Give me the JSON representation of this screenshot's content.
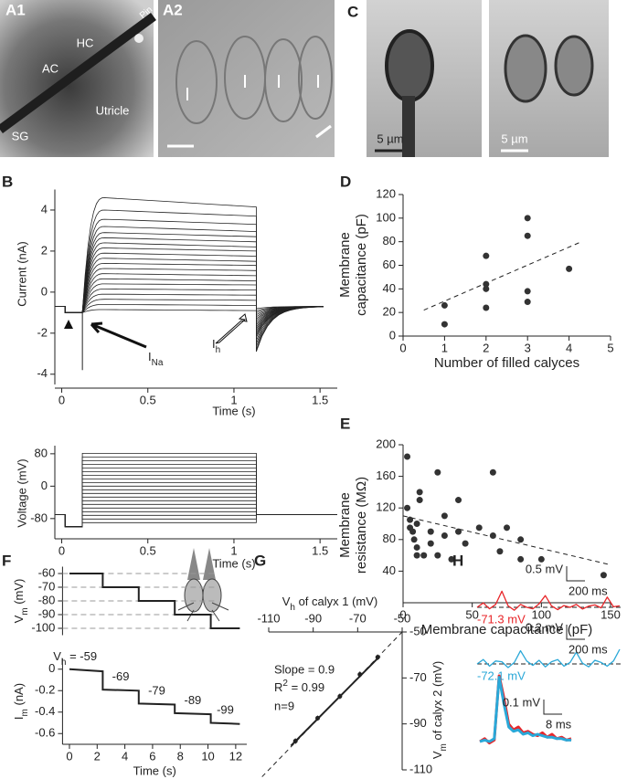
{
  "images": {
    "A1": {
      "label": "A1",
      "texts": [
        "Pin",
        "HC",
        "AC",
        "Utricle",
        "SG"
      ]
    },
    "A2": {
      "label": "A2"
    },
    "C": {
      "label": "C",
      "scale_bars": [
        "5 µm",
        "5 µm"
      ]
    }
  },
  "chart_data": [
    {
      "panel": "B",
      "type": "current-family",
      "ylabel": "Current (nA)",
      "xlabel": "Time (s)",
      "xlim": [
        -0.04,
        1.6
      ],
      "ylim": [
        -4.5,
        5
      ],
      "xticks": [
        0,
        0.5,
        1,
        1.5
      ],
      "yticks": [
        -4,
        -2,
        0,
        2,
        4
      ],
      "baseline": -0.7,
      "prepulse": -1.0,
      "step_on": 0.12,
      "step_off": 1.13,
      "na_peak": -3.8,
      "tail_end": -0.7,
      "peaks": [
        -0.85,
        -0.6,
        -0.35,
        -0.1,
        0.15,
        0.4,
        0.65,
        0.9,
        1.15,
        1.4,
        1.65,
        1.9,
        2.15,
        2.4,
        2.65,
        2.9,
        3.2,
        3.55,
        4.0,
        4.6
      ],
      "ends": [
        -0.9,
        -0.65,
        -0.4,
        -0.15,
        0.1,
        0.35,
        0.55,
        0.8,
        1.05,
        1.3,
        1.5,
        1.75,
        2.0,
        2.2,
        2.45,
        2.7,
        2.95,
        3.3,
        3.7,
        4.15
      ],
      "tails": [
        -0.8,
        -0.9,
        -1.0,
        -1.1,
        -1.2,
        -1.3,
        -1.4,
        -1.5,
        -1.6,
        -1.7,
        -1.8,
        -1.9,
        -2.0,
        -2.1,
        -2.2,
        -2.35,
        -2.5,
        -2.65,
        -2.8,
        -2.9
      ],
      "annotations": [
        [
          "I",
          "Na"
        ],
        [
          "I",
          "h"
        ]
      ]
    },
    {
      "type": "voltage-family",
      "ylabel": "Voltage (mV)",
      "xlabel": "Time (s)",
      "xlim": [
        -0.04,
        1.6
      ],
      "ylim": [
        -130,
        100
      ],
      "xticks": [
        0,
        0.5,
        1,
        1.5
      ],
      "yticks": [
        -80,
        0,
        80
      ],
      "hold": -70,
      "prepulse": -100,
      "after": -70,
      "prepulse_on": 0.02,
      "step_on": 0.12,
      "step_off": 1.13,
      "levels": [
        -90,
        -81,
        -72,
        -63,
        -54,
        -45,
        -36,
        -27,
        -18,
        -9,
        0,
        9,
        18,
        27,
        36,
        45,
        54,
        63,
        72,
        81
      ]
    },
    {
      "panel": "D",
      "type": "scatter",
      "ylabel": [
        "Membrane",
        "capacitance (pF)"
      ],
      "xlabel": "Number of filled calyces",
      "xlim": [
        0,
        5
      ],
      "ylim": [
        0,
        120
      ],
      "xticks": [
        0,
        1,
        2,
        3,
        4,
        5
      ],
      "yticks": [
        0,
        20,
        40,
        60,
        80,
        100,
        120
      ],
      "x": [
        1,
        1,
        2,
        2,
        2,
        2,
        3,
        3,
        3,
        3,
        4
      ],
      "values": [
        26,
        10,
        68,
        44,
        40,
        24,
        100,
        85,
        38,
        29,
        57
      ],
      "trend": {
        "x": [
          0.5,
          4.3
        ],
        "y": [
          22,
          80
        ]
      }
    },
    {
      "panel": "E",
      "type": "scatter",
      "ylabel": [
        "Membrane",
        "resistance (MΩ)"
      ],
      "xlabel": "Membrane capacitance (pF)",
      "xlim": [
        0,
        150
      ],
      "ylim": [
        0,
        200
      ],
      "xticks": [
        0,
        50,
        100,
        150
      ],
      "yticks": [
        40,
        80,
        120,
        160,
        200
      ],
      "x": [
        3,
        3,
        5,
        5,
        7,
        8,
        10,
        10,
        12,
        12,
        10,
        15,
        20,
        20,
        25,
        25,
        30,
        30,
        35,
        40,
        40,
        45,
        55,
        65,
        65,
        70,
        75,
        85,
        85,
        100,
        145
      ],
      "values": [
        185,
        120,
        105,
        95,
        90,
        80,
        70,
        60,
        140,
        130,
        100,
        60,
        90,
        75,
        165,
        60,
        110,
        85,
        55,
        130,
        90,
        75,
        95,
        165,
        85,
        65,
        95,
        80,
        55,
        55,
        35
      ],
      "trend": {
        "x": [
          0,
          150
        ],
        "y": [
          110,
          48
        ]
      }
    },
    {
      "panel": "F",
      "type": "step-line",
      "ylabel_parts": [
        "V",
        "m",
        " (mV)"
      ],
      "xlim": [
        -0.5,
        12.8
      ],
      "ylim": [
        -105,
        -55
      ],
      "yticks": [
        -60,
        -70,
        -80,
        -90,
        -100
      ],
      "grid": true,
      "x": [
        0,
        2.4,
        2.4,
        5,
        5,
        7.6,
        7.6,
        10.2,
        10.2,
        12.3
      ],
      "values": [
        -60,
        -60,
        -70,
        -70,
        -80,
        -80,
        -90,
        -90,
        -100,
        -100
      ]
    },
    {
      "type": "step-line",
      "ylabel_parts": [
        "I",
        "m",
        " (nA)"
      ],
      "xlabel": "Time (s)",
      "xlim": [
        -0.5,
        12.8
      ],
      "ylim": [
        -0.7,
        0.1
      ],
      "xticks": [
        0,
        2,
        4,
        6,
        8,
        10,
        12
      ],
      "yticks": [
        0,
        -0.2,
        -0.4,
        -0.6
      ],
      "x": [
        0,
        2.4,
        2.4,
        5,
        5,
        7.6,
        7.6,
        10.2,
        10.2,
        12.3
      ],
      "values": [
        0,
        -0.02,
        -0.19,
        -0.2,
        -0.32,
        -0.33,
        -0.41,
        -0.42,
        -0.5,
        -0.51
      ],
      "label_prefix": [
        "V",
        "h",
        " = "
      ],
      "step_labels": [
        "-59",
        "-69",
        "-79",
        "-89",
        "-99"
      ]
    },
    {
      "panel": "G",
      "type": "errorbar-line",
      "xlabel_parts": [
        "V",
        "h",
        " of calyx 1 (mV)"
      ],
      "ylabel_parts": [
        "V",
        "m",
        " of calyx 2 (mV)"
      ],
      "xlim": [
        -110,
        -50
      ],
      "ylim": [
        -110,
        -50
      ],
      "xticks": [
        -110,
        -90,
        -70,
        -50
      ],
      "yticks": [
        -50,
        -70,
        -90,
        -110
      ],
      "x": [
        -98,
        -88,
        -78,
        -69,
        -61
      ],
      "values": [
        -97.5,
        -87.5,
        -78,
        -68.5,
        -61
      ],
      "errors": [
        1.2,
        1.1,
        1.2,
        1.3,
        1.2
      ],
      "fit": {
        "x": [
          -100,
          -60
        ],
        "y": [
          -99.5,
          -60.5
        ]
      },
      "stats": [
        "Slope = 0.9",
        [
          "R",
          "2",
          " = 0.99"
        ],
        "n=9"
      ]
    },
    {
      "panel": "H",
      "type": "traces",
      "traces": [
        {
          "label": "-71.3 mV",
          "color": "#e8262a",
          "scale_v": "0.5 mV",
          "scale_t": "200 ms",
          "values": [
            0,
            0.15,
            -0.05,
            0.1,
            0.55,
            0.05,
            -0.1,
            0.1,
            0,
            -0.05,
            0.12,
            0.4,
            0.05,
            -0.08,
            0.06,
            0,
            0.1,
            -0.06,
            0.04,
            0.08,
            -0.02,
            0.35,
            0.02,
            0.05
          ]
        },
        {
          "label": "-72.1 mV",
          "color": "#2aa8d8",
          "scale_v": "0.2 mV",
          "scale_t": "200 ms",
          "values": [
            0,
            0.06,
            -0.03,
            0.04,
            0.03,
            -0.05,
            0.02,
            0.18,
            0.04,
            -0.02,
            0.05,
            -0.04,
            0.03,
            0.06,
            -0.03,
            0.02,
            0.16,
            0.01,
            -0.04,
            0.05,
            0.02,
            -0.03,
            0.04,
            0.2
          ]
        },
        {
          "scale_v": "0.1 mV",
          "scale_t": "8 ms",
          "series": [
            {
              "color": "#e8262a",
              "values": [
                0,
                0.02,
                -0.01,
                0.01,
                0.45,
                0.3,
                0.12,
                0.08,
                0.1,
                0.06,
                0.07,
                0.05,
                0.04,
                0.06,
                0.03,
                0.05,
                0.02,
                0.03,
                0.01,
                0.02
              ]
            },
            {
              "color": "#2aa8d8",
              "values": [
                0,
                0.01,
                0,
                0.02,
                0.44,
                0.26,
                0.1,
                0.07,
                0.08,
                0.05,
                0.06,
                0.04,
                0.05,
                0.04,
                0.03,
                0.03,
                0.02,
                0.02,
                0.01,
                0.01
              ]
            }
          ]
        }
      ]
    }
  ]
}
